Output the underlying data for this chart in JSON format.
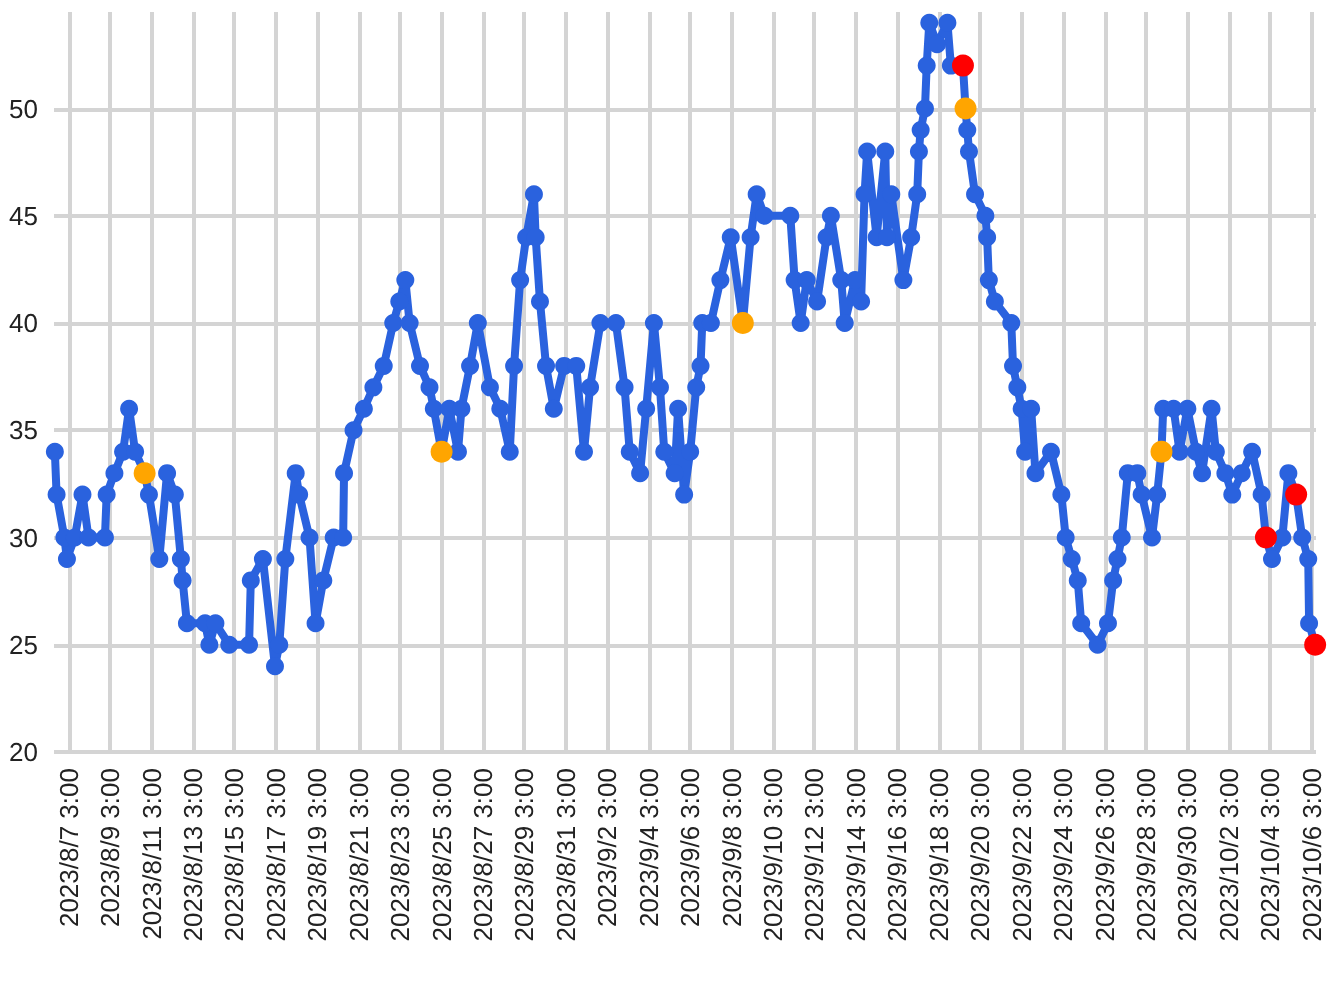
{
  "chart_data": {
    "type": "line",
    "marker": "circle",
    "grid": true,
    "xlim": [
      "2023-08-06T10:00",
      "2023-10-06T08:00"
    ],
    "xticks": [
      {
        "value": "2023-08-07T03:00",
        "label": "2023/8/7 3:00"
      },
      {
        "value": "2023-08-09T03:00",
        "label": "2023/8/9 3:00"
      },
      {
        "value": "2023-08-11T03:00",
        "label": "2023/8/11 3:00"
      },
      {
        "value": "2023-08-13T03:00",
        "label": "2023/8/13 3:00"
      },
      {
        "value": "2023-08-15T03:00",
        "label": "2023/8/15 3:00"
      },
      {
        "value": "2023-08-17T03:00",
        "label": "2023/8/17 3:00"
      },
      {
        "value": "2023-08-19T03:00",
        "label": "2023/8/19 3:00"
      },
      {
        "value": "2023-08-21T03:00",
        "label": "2023/8/21 3:00"
      },
      {
        "value": "2023-08-23T03:00",
        "label": "2023/8/23 3:00"
      },
      {
        "value": "2023-08-25T03:00",
        "label": "2023/8/25 3:00"
      },
      {
        "value": "2023-08-27T03:00",
        "label": "2023/8/27 3:00"
      },
      {
        "value": "2023-08-29T03:00",
        "label": "2023/8/29 3:00"
      },
      {
        "value": "2023-08-31T03:00",
        "label": "2023/8/31 3:00"
      },
      {
        "value": "2023-09-02T03:00",
        "label": "2023/9/2 3:00"
      },
      {
        "value": "2023-09-04T03:00",
        "label": "2023/9/4 3:00"
      },
      {
        "value": "2023-09-06T03:00",
        "label": "2023/9/6 3:00"
      },
      {
        "value": "2023-09-08T03:00",
        "label": "2023/9/8 3:00"
      },
      {
        "value": "2023-09-10T03:00",
        "label": "2023/9/10 3:00"
      },
      {
        "value": "2023-09-12T03:00",
        "label": "2023/9/12 3:00"
      },
      {
        "value": "2023-09-14T03:00",
        "label": "2023/9/14 3:00"
      },
      {
        "value": "2023-09-16T03:00",
        "label": "2023/9/16 3:00"
      },
      {
        "value": "2023-09-18T03:00",
        "label": "2023/9/18 3:00"
      },
      {
        "value": "2023-09-20T03:00",
        "label": "2023/9/20 3:00"
      },
      {
        "value": "2023-09-22T03:00",
        "label": "2023/9/22 3:00"
      },
      {
        "value": "2023-09-24T03:00",
        "label": "2023/9/24 3:00"
      },
      {
        "value": "2023-09-26T03:00",
        "label": "2023/9/26 3:00"
      },
      {
        "value": "2023-09-28T03:00",
        "label": "2023/9/28 3:00"
      },
      {
        "value": "2023-09-30T03:00",
        "label": "2023/9/30 3:00"
      },
      {
        "value": "2023-10-02T03:00",
        "label": "2023/10/2 3:00"
      },
      {
        "value": "2023-10-04T03:00",
        "label": "2023/10/4 3:00"
      },
      {
        "value": "2023-10-06T03:00",
        "label": "2023/10/6 3:00"
      }
    ],
    "ylim": [
      20,
      54.5
    ],
    "yticks": [
      20,
      25,
      30,
      35,
      40,
      45,
      50
    ],
    "series": [
      {
        "type": "line",
        "color": "#2a62de",
        "x": [
          "2023-08-06T11:00",
          "2023-08-06T13:00",
          "2023-08-06T22:00",
          "2023-08-07T01:00",
          "2023-08-07T10:00",
          "2023-08-07T19:00",
          "2023-08-08T02:00",
          "2023-08-08T21:00",
          "2023-08-08T23:00",
          "2023-08-09T08:00",
          "2023-08-09T18:00",
          "2023-08-10T01:00",
          "2023-08-10T08:00",
          "2023-08-10T19:00",
          "2023-08-11T00:00",
          "2023-08-11T12:00",
          "2023-08-11T21:00",
          "2023-08-12T06:00",
          "2023-08-12T13:00",
          "2023-08-12T15:00",
          "2023-08-12T20:00",
          "2023-08-13T17:00",
          "2023-08-13T22:00",
          "2023-08-14T05:00",
          "2023-08-14T21:00",
          "2023-08-15T20:00",
          "2023-08-15T22:00",
          "2023-08-16T12:00",
          "2023-08-17T02:00",
          "2023-08-17T07:00",
          "2023-08-17T14:00",
          "2023-08-18T02:00",
          "2023-08-18T06:00",
          "2023-08-18T18:00",
          "2023-08-19T01:00",
          "2023-08-19T10:00",
          "2023-08-19T22:00",
          "2023-08-20T09:00",
          "2023-08-20T10:00",
          "2023-08-20T21:00",
          "2023-08-21T09:00",
          "2023-08-21T20:00",
          "2023-08-22T08:00",
          "2023-08-22T19:00",
          "2023-08-23T02:00",
          "2023-08-23T09:00",
          "2023-08-23T14:00",
          "2023-08-24T02:00",
          "2023-08-24T13:00",
          "2023-08-24T18:00",
          "2023-08-25T03:00",
          "2023-08-25T12:00",
          "2023-08-25T22:00",
          "2023-08-26T02:00",
          "2023-08-26T12:00",
          "2023-08-26T21:00",
          "2023-08-27T11:00",
          "2023-08-27T23:00",
          "2023-08-28T10:00",
          "2023-08-28T15:00",
          "2023-08-28T22:00",
          "2023-08-29T05:00",
          "2023-08-29T14:00",
          "2023-08-29T16:00",
          "2023-08-29T21:00",
          "2023-08-30T04:00",
          "2023-08-30T13:00",
          "2023-08-31T01:00",
          "2023-08-31T15:00",
          "2023-09-01T00:00",
          "2023-09-01T07:00",
          "2023-09-01T19:00",
          "2023-09-02T13:00",
          "2023-09-02T23:00",
          "2023-09-03T05:00",
          "2023-09-03T17:00",
          "2023-09-04T00:00",
          "2023-09-04T09:00",
          "2023-09-04T16:00",
          "2023-09-04T21:00",
          "2023-09-05T09:00",
          "2023-09-05T13:00",
          "2023-09-05T20:00",
          "2023-09-06T03:00",
          "2023-09-06T10:00",
          "2023-09-06T15:00",
          "2023-09-06T17:00",
          "2023-09-07T03:00",
          "2023-09-07T14:00",
          "2023-09-08T02:00",
          "2023-09-08T16:00",
          "2023-09-09T01:00",
          "2023-09-09T08:00",
          "2023-09-09T17:00",
          "2023-09-10T23:00",
          "2023-09-11T04:00",
          "2023-09-11T11:00",
          "2023-09-11T18:00",
          "2023-09-12T06:00",
          "2023-09-12T17:00",
          "2023-09-12T22:00",
          "2023-09-13T10:00",
          "2023-09-13T14:00",
          "2023-09-14T02:00",
          "2023-09-14T09:00",
          "2023-09-14T13:00",
          "2023-09-14T16:00",
          "2023-09-15T03:00",
          "2023-09-15T13:00",
          "2023-09-15T15:00",
          "2023-09-15T20:00",
          "2023-09-16T10:00",
          "2023-09-16T19:00",
          "2023-09-17T02:00",
          "2023-09-17T04:00",
          "2023-09-17T06:00",
          "2023-09-17T11:00",
          "2023-09-17T13:00",
          "2023-09-17T16:00",
          "2023-09-18T01:00",
          "2023-09-18T13:00",
          "2023-09-18T17:00",
          "2023-09-19T07:00",
          "2023-09-19T10:00",
          "2023-09-19T12:00",
          "2023-09-19T14:00",
          "2023-09-19T21:00",
          "2023-09-20T09:00",
          "2023-09-20T11:00",
          "2023-09-20T13:00",
          "2023-09-20T20:00",
          "2023-09-21T15:00",
          "2023-09-21T17:00",
          "2023-09-21T22:00",
          "2023-09-22T03:00",
          "2023-09-22T07:00",
          "2023-09-22T14:00",
          "2023-09-22T19:00",
          "2023-09-23T13:00",
          "2023-09-24T01:00",
          "2023-09-24T06:00",
          "2023-09-24T13:00",
          "2023-09-24T20:00",
          "2023-09-25T00:00",
          "2023-09-25T19:00",
          "2023-09-26T07:00",
          "2023-09-26T13:00",
          "2023-09-26T18:00",
          "2023-09-26T23:00",
          "2023-09-27T06:00",
          "2023-09-27T17:00",
          "2023-09-27T22:00",
          "2023-09-28T10:00",
          "2023-09-28T16:00",
          "2023-09-28T21:00",
          "2023-09-28T23:00",
          "2023-09-29T11:00",
          "2023-09-29T18:00",
          "2023-09-30T03:00",
          "2023-09-30T13:00",
          "2023-09-30T20:00",
          "2023-10-01T07:00",
          "2023-10-01T12:00",
          "2023-10-01T23:00",
          "2023-10-02T07:00",
          "2023-10-02T18:00",
          "2023-10-03T06:00",
          "2023-10-03T17:00",
          "2023-10-03T22:00",
          "2023-10-04T05:00",
          "2023-10-04T17:00",
          "2023-10-05T00:00",
          "2023-10-05T09:00",
          "2023-10-05T16:00",
          "2023-10-05T23:00",
          "2023-10-06T00:00",
          "2023-10-06T07:00"
        ],
        "values": [
          34,
          32,
          30,
          29,
          30,
          32,
          30,
          30,
          32,
          33,
          34,
          36,
          34,
          33,
          32,
          29,
          33,
          32,
          29,
          28,
          26,
          26,
          25,
          26,
          25,
          25,
          28,
          29,
          24,
          25,
          29,
          33,
          32,
          30,
          26,
          28,
          30,
          30,
          33,
          35,
          36,
          37,
          38,
          40,
          41,
          42,
          40,
          38,
          37,
          36,
          34,
          36,
          34,
          36,
          38,
          40,
          37,
          36,
          34,
          38,
          42,
          44,
          46,
          44,
          41,
          38,
          36,
          38,
          38,
          34,
          37,
          40,
          40,
          37,
          34,
          33,
          36,
          40,
          37,
          34,
          33,
          36,
          32,
          34,
          37,
          38,
          40,
          40,
          42,
          44,
          40,
          44,
          46,
          45,
          45,
          42,
          40,
          42,
          41,
          44,
          45,
          42,
          40,
          42,
          41,
          46,
          48,
          44,
          48,
          44,
          46,
          42,
          44,
          46,
          48,
          49,
          50,
          52,
          54,
          53,
          54,
          52,
          52,
          50,
          49,
          48,
          46,
          45,
          44,
          42,
          41,
          40,
          38,
          37,
          36,
          34,
          36,
          33,
          34,
          32,
          30,
          29,
          28,
          26,
          25,
          26,
          28,
          29,
          30,
          33,
          33,
          32,
          30,
          32,
          34,
          36,
          36,
          34,
          36,
          34,
          33,
          36,
          34,
          33,
          32,
          33,
          34,
          32,
          30,
          29,
          30,
          33,
          32,
          30,
          29,
          26,
          25
        ]
      },
      {
        "type": "scatter",
        "color": "#ffa500",
        "x": [
          "2023-08-10T19:00",
          "2023-08-25T03:00",
          "2023-09-08T16:00",
          "2023-09-19T10:00",
          "2023-09-28T21:00"
        ],
        "values": [
          33,
          34,
          40,
          50,
          34
        ]
      },
      {
        "type": "scatter",
        "color": "#ff0000",
        "x": [
          "2023-09-19T07:00",
          "2023-10-03T22:00",
          "2023-10-05T09:00",
          "2023-10-06T07:00"
        ],
        "values": [
          52,
          30,
          32,
          25
        ]
      }
    ]
  }
}
